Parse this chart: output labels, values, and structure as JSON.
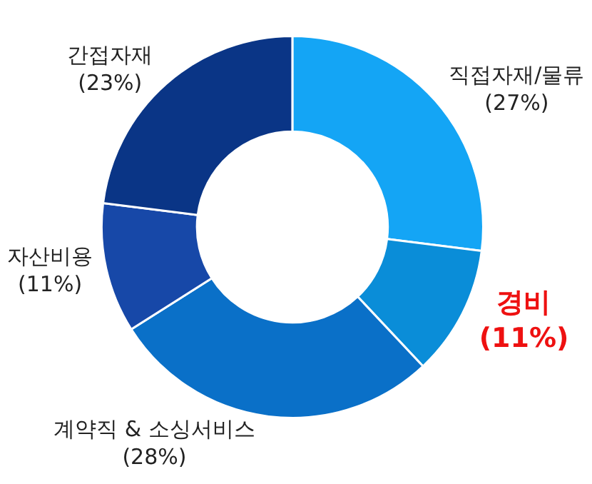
{
  "chart_data": {
    "type": "donut",
    "categories": [
      "직접자재/물류",
      "경비",
      "계약직 & 소싱서비스",
      "자산비용",
      "간접자재"
    ],
    "values": [
      27,
      11,
      28,
      11,
      23
    ],
    "value_labels": [
      "(27%)",
      "(11%)",
      "(28%)",
      "(11%)",
      "(23%)"
    ],
    "colors": [
      "#14a5f5",
      "#0a8dd8",
      "#0a70c8",
      "#1748a8",
      "#0a3586"
    ],
    "legend": false
  }
}
